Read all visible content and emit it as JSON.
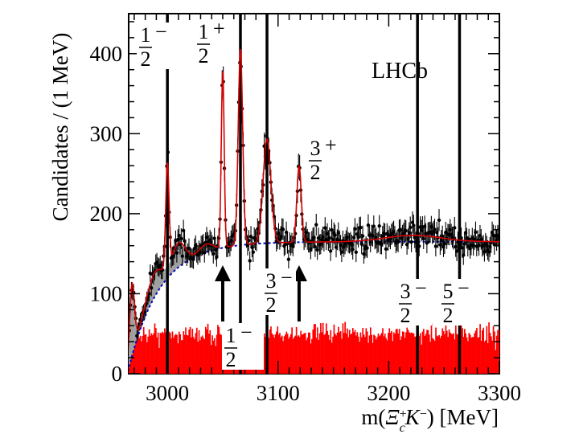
{
  "chart_data": {
    "type": "histogram",
    "title": "",
    "experiment_label": "LHCb",
    "xlabel": {
      "prefix": "m(",
      "xi": "Ξ",
      "xi_sup": "+",
      "xi_sub": "c",
      "k": "K",
      "k_sup": "−",
      "suffix": ") [MeV]"
    },
    "ylabel": "Candidates / (1 MeV)",
    "xlim": [
      2965,
      3300
    ],
    "ylim": [
      0,
      450
    ],
    "x_ticks": [
      3000,
      3100,
      3200,
      3300
    ],
    "y_ticks": [
      0,
      100,
      200,
      300,
      400
    ],
    "peaks": [
      {
        "mass": 3000,
        "amp": 130,
        "width": 1.5
      },
      {
        "mass": 3050,
        "amp": 220,
        "width": 1.3
      },
      {
        "mass": 3066,
        "amp": 245,
        "width": 2.0
      },
      {
        "mass": 3090,
        "amp": 130,
        "width": 3.5
      },
      {
        "mass": 3119,
        "amp": 95,
        "width": 2.0
      }
    ],
    "feed_down": [
      {
        "center": 2968,
        "amp": 90,
        "width": 2.2
      },
      {
        "center": 2988,
        "amp": 30,
        "width": 7
      },
      {
        "center": 3010,
        "amp": 30,
        "width": 6
      },
      {
        "center": 3035,
        "amp": 10,
        "width": 6
      },
      {
        "center": 3222,
        "amp": 8,
        "width": 25
      }
    ],
    "threshold": 2964,
    "background_level": 165,
    "wrong_sign_level": 50,
    "series": [
      {
        "name": "Data",
        "style": "points-with-errors",
        "color": "#000000"
      },
      {
        "name": "Total fit",
        "style": "solid-line",
        "color": "#d40000"
      },
      {
        "name": "Background",
        "style": "dashed-line",
        "color": "#0000cc"
      },
      {
        "name": "Feed-down",
        "style": "filled",
        "color": "#a0a0a0"
      },
      {
        "name": "Wrong-sign",
        "style": "filled-histogram",
        "color": "#ff0000"
      }
    ],
    "vertical_lines": [
      3000,
      3066,
      3090,
      3226,
      3264
    ],
    "arrows": [
      3050,
      3119
    ],
    "jp_labels": [
      {
        "num": "1",
        "den": "2",
        "parity": "−"
      },
      {
        "num": "1",
        "den": "2",
        "parity": "+"
      },
      {
        "num": "3",
        "den": "2",
        "parity": "+"
      },
      {
        "num": "1",
        "den": "2",
        "parity": "−"
      },
      {
        "num": "3",
        "den": "2",
        "parity": "−"
      },
      {
        "num": "3",
        "den": "2",
        "parity": "−"
      },
      {
        "num": "5",
        "den": "2",
        "parity": "−"
      }
    ]
  },
  "colors": {
    "data": "#000000",
    "fit": "#d40000",
    "background": "#0000cc",
    "wrong_sign": "#ff0000",
    "feed_down": "#a0a0a0"
  }
}
